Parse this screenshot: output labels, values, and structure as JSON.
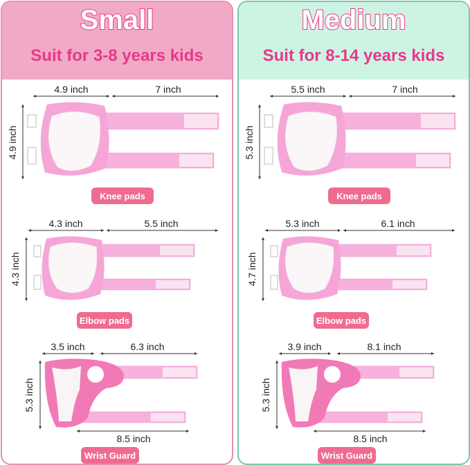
{
  "colors": {
    "accent": "#e8378b",
    "small_header": "#f1aac6",
    "medium_header": "#cdf4e2",
    "badge": "#f06b90",
    "pad_pink": "#f2a3d4"
  },
  "panels": [
    {
      "size": "Small",
      "subtitle": "Suit for 3-8 years kids",
      "knee": {
        "width": "4.9 inch",
        "strap": "7 inch",
        "height": "4.9 inch",
        "label": "Knee pads"
      },
      "elbow": {
        "width": "4.3 inch",
        "strap": "5.5 inch",
        "height": "4.3 inch",
        "label": "Elbow pads"
      },
      "wrist": {
        "width": "3.5 inch",
        "strap": "6.3 inch",
        "height": "5.3 inch",
        "length": "8.5 inch",
        "label": "Wrist Guard"
      }
    },
    {
      "size": "Medium",
      "subtitle": "Suit for 8-14 years kids",
      "knee": {
        "width": "5.5 inch",
        "strap": "7 inch",
        "height": "5.3 inch",
        "label": "Knee pads"
      },
      "elbow": {
        "width": "5.3 inch",
        "strap": "6.1 inch",
        "height": "4.7 inch",
        "label": "Elbow pads"
      },
      "wrist": {
        "width": "3.9 inch",
        "strap": "8.1 inch",
        "height": "5.3 inch",
        "length": "8.5 inch",
        "label": "Wrist Guard"
      }
    }
  ]
}
